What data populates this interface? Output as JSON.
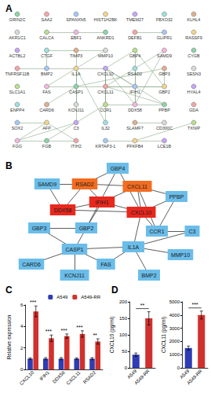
{
  "chart_data": [
    {
      "panel_label": "A",
      "type": "graph",
      "marker": "circle",
      "nodes": [
        "GRIN2C",
        "SAA2",
        "SPANXN5",
        "HIST1H2BK",
        "TMEM27",
        "FBXO32",
        "KLHL4",
        "AKR1C1",
        "CALCA",
        "EBF1",
        "ANKRD1",
        "DEFB1",
        "GLIPR1",
        "RASSF9",
        "ACTBL2",
        "CTGF",
        "TIMP3",
        "MMP10",
        "GBP4",
        "SAMD9",
        "CYGB",
        "TNFRSF11B",
        "BMP2",
        "IL1A",
        "CXCL10",
        "RSAD2",
        "GBP3",
        "SESN3",
        "SLC1A1",
        "FAS",
        "CASP1",
        "CXCL11",
        "IFIH1",
        "GBP2",
        "HYAL4",
        "ENPP4",
        "CARD6",
        "KCNJ11",
        "CCR1",
        "DDX58",
        "PPBP",
        "GDA",
        "SOX2",
        "AFP",
        "C3",
        "IL32",
        "SLAMF7",
        "CD300C",
        "TXNIP",
        "FGG",
        "FGB",
        "ITIH2",
        "KRTAP3-1",
        "PFKFB4",
        "LCE1B"
      ],
      "edges": [
        [
          "IFIH1",
          "DDX58"
        ],
        [
          "IFIH1",
          "CXCL10"
        ],
        [
          "IFIH1",
          "RSAD2"
        ],
        [
          "IFIH1",
          "CXCL11"
        ],
        [
          "DDX58",
          "RSAD2"
        ],
        [
          "DDX58",
          "CXCL10"
        ],
        [
          "CXCL10",
          "CXCL11"
        ],
        [
          "RSAD2",
          "CXCL11"
        ],
        [
          "SAMD9",
          "RSAD2"
        ],
        [
          "SAMD9",
          "DDX58"
        ],
        [
          "GBP4",
          "RSAD2"
        ],
        [
          "GBP4",
          "CXCL10"
        ],
        [
          "GBP4",
          "GBP2"
        ],
        [
          "GBP2",
          "GBP3"
        ],
        [
          "GBP2",
          "IFIH1"
        ],
        [
          "GBP2",
          "CASP1"
        ],
        [
          "CXCL11",
          "PPBP"
        ],
        [
          "CXCL10",
          "PPBP"
        ],
        [
          "CXCL10",
          "CCR1"
        ],
        [
          "CXCL11",
          "CCR1"
        ],
        [
          "CCR1",
          "C3"
        ],
        [
          "PPBP",
          "CCR1"
        ],
        [
          "CXCL10",
          "IL1A"
        ],
        [
          "IL1A",
          "CASP1"
        ],
        [
          "IL1A",
          "MMP10"
        ],
        [
          "IL1A",
          "FAS"
        ],
        [
          "IL1A",
          "C3"
        ],
        [
          "IL1A",
          "BMP2"
        ],
        [
          "CASP1",
          "CARD6"
        ],
        [
          "CASP1",
          "FAS"
        ],
        [
          "CASP1",
          "KCNJ11"
        ],
        [
          "CASP1",
          "GBP3"
        ],
        [
          "SOX2",
          "AFP"
        ],
        [
          "AFP",
          "FGG"
        ],
        [
          "FGG",
          "FGB"
        ],
        [
          "FGB",
          "ITIH2"
        ],
        [
          "AFP",
          "ITIH2"
        ],
        [
          "C3",
          "FGG"
        ],
        [
          "C3",
          "FGB"
        ],
        [
          "TIMP3",
          "MMP10"
        ],
        [
          "CTGF",
          "TIMP3"
        ],
        [
          "CTGF",
          "BMP2"
        ],
        [
          "TNFRSF11B",
          "BMP2"
        ],
        [
          "CXCL10",
          "IL32"
        ],
        [
          "IL1A",
          "IL32"
        ],
        [
          "SLAMF7",
          "CD300C"
        ],
        [
          "CALCA",
          "ANKRD1"
        ],
        [
          "TIMP3",
          "IL1A"
        ],
        [
          "KRTAP3-1",
          "LCE1B"
        ],
        [
          "TXNIP",
          "PFKFB4"
        ],
        [
          "GLIPR1",
          "DEFB1"
        ]
      ]
    },
    {
      "panel_label": "B",
      "type": "graph",
      "marker": "rect",
      "nodes": [
        "GBP4",
        "SAMD9",
        "RSAD2",
        "CXCL11",
        "PPBP",
        "IFIH1",
        "DDX58",
        "CXCL10",
        "GBP3",
        "GBP2",
        "CCR1",
        "C3",
        "IL1A",
        "CASP1",
        "MMP10",
        "CARD6",
        "FAS",
        "KCNJ11",
        "BMP2"
      ],
      "colors": [
        "#6bbde9",
        "#6bbde9",
        "#f36c21",
        "#f36c21",
        "#6bbde9",
        "#e8281e",
        "#e8281e",
        "#e8281e",
        "#6bbde9",
        "#6bbde9",
        "#6bbde9",
        "#6bbde9",
        "#6bbde9",
        "#6bbde9",
        "#6bbde9",
        "#6bbde9",
        "#6bbde9",
        "#6bbde9",
        "#6bbde9"
      ],
      "edges": [
        [
          "IFIH1",
          "DDX58"
        ],
        [
          "IFIH1",
          "CXCL10"
        ],
        [
          "IFIH1",
          "RSAD2"
        ],
        [
          "IFIH1",
          "CXCL11"
        ],
        [
          "DDX58",
          "RSAD2"
        ],
        [
          "DDX58",
          "CXCL10"
        ],
        [
          "CXCL10",
          "CXCL11"
        ],
        [
          "RSAD2",
          "CXCL11"
        ],
        [
          "SAMD9",
          "RSAD2"
        ],
        [
          "SAMD9",
          "DDX58"
        ],
        [
          "GBP4",
          "RSAD2"
        ],
        [
          "GBP4",
          "CXCL10"
        ],
        [
          "GBP4",
          "GBP2"
        ],
        [
          "GBP2",
          "GBP3"
        ],
        [
          "GBP2",
          "IFIH1"
        ],
        [
          "GBP2",
          "CASP1"
        ],
        [
          "CXCL11",
          "PPBP"
        ],
        [
          "CXCL10",
          "PPBP"
        ],
        [
          "CXCL10",
          "CCR1"
        ],
        [
          "CXCL11",
          "CCR1"
        ],
        [
          "CCR1",
          "C3"
        ],
        [
          "PPBP",
          "CCR1"
        ],
        [
          "CXCL10",
          "IL1A"
        ],
        [
          "IL1A",
          "CASP1"
        ],
        [
          "IL1A",
          "MMP10"
        ],
        [
          "IL1A",
          "FAS"
        ],
        [
          "IL1A",
          "C3"
        ],
        [
          "IL1A",
          "BMP2"
        ],
        [
          "CASP1",
          "CARD6"
        ],
        [
          "CASP1",
          "FAS"
        ],
        [
          "CASP1",
          "KCNJ11"
        ],
        [
          "CASP1",
          "GBP3"
        ]
      ]
    },
    {
      "panel_label": "C",
      "type": "bar",
      "ylabel": "Relative expression",
      "categories": [
        "CXCL10",
        "IFIH1",
        "DDX58",
        "CXCL11",
        "RSAD2"
      ],
      "series": [
        {
          "name": "A549",
          "color": "#2e3cb5",
          "values": [
            1,
            1,
            1,
            1,
            1
          ],
          "errors": [
            0.08,
            0.1,
            0.1,
            0.08,
            0.1
          ]
        },
        {
          "name": "A549-RR",
          "color": "#d0312d",
          "values": [
            5.4,
            2.9,
            3.1,
            3.3,
            2.6
          ],
          "errors": [
            0.5,
            0.3,
            0.2,
            0.3,
            0.25
          ]
        }
      ],
      "annotations": [
        "***",
        "***",
        "***",
        "***",
        "**"
      ],
      "ylim": [
        0,
        6
      ],
      "yticks": [
        0,
        2,
        4,
        6
      ],
      "legend": "top-right"
    },
    {
      "panel_label": "D",
      "type": "bar",
      "ylabel": "CXCL10 (pg/ml)",
      "categories": [
        "A549",
        "A549-RR"
      ],
      "values": [
        40,
        150
      ],
      "errors": [
        5,
        20
      ],
      "colors": [
        "#2e3cb5",
        "#d0312d"
      ],
      "annotations": [
        "**"
      ],
      "ylim": [
        0,
        200
      ],
      "yticks": [
        0,
        50,
        100,
        150,
        200
      ]
    },
    {
      "type": "bar",
      "ylabel": "CXCL11 (pg/ml)",
      "categories": [
        "A549",
        "A549-RR"
      ],
      "values": [
        1500,
        4000
      ],
      "errors": [
        150,
        300
      ],
      "colors": [
        "#2e3cb5",
        "#d0312d"
      ],
      "annotations": [
        "***"
      ],
      "ylim": [
        0,
        5000
      ],
      "yticks": [
        0,
        1000,
        2000,
        3000,
        4000,
        5000
      ]
    }
  ]
}
